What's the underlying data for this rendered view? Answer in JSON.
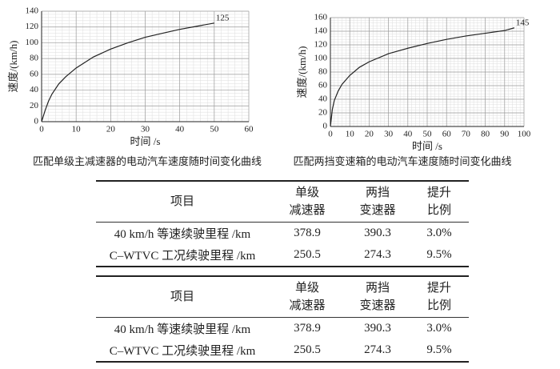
{
  "chart_data": [
    {
      "type": "line",
      "x_label": "时间 /s",
      "y_label": "速度/(km/h)",
      "caption": "匹配单级主减速器的电动汽车速度随时间变化曲线",
      "xlim": [
        0,
        60
      ],
      "xticks": [
        0,
        10,
        20,
        30,
        40,
        50,
        60
      ],
      "ylim": [
        0,
        140
      ],
      "yticks": [
        0,
        20,
        40,
        60,
        80,
        100,
        120,
        140
      ],
      "grid": true,
      "series": [
        {
          "color": "#222222",
          "x": [
            0,
            1,
            2,
            3,
            5,
            7,
            10,
            15,
            20,
            25,
            30,
            35,
            40,
            45,
            50
          ],
          "values": [
            0,
            14,
            26,
            35,
            48,
            57,
            68,
            82,
            92,
            100,
            107,
            112,
            117,
            121,
            125
          ],
          "value_labels": [
            null,
            null,
            null,
            null,
            null,
            null,
            null,
            null,
            null,
            null,
            null,
            null,
            null,
            null,
            "125"
          ]
        }
      ]
    },
    {
      "type": "line",
      "x_label": "时间 /s",
      "y_label": "速度/(km/h)",
      "caption": "匹配两挡变速箱的电动汽车速度随时间变化曲线",
      "xlim": [
        0,
        100
      ],
      "xticks": [
        0,
        10,
        20,
        30,
        40,
        50,
        60,
        70,
        80,
        90,
        100
      ],
      "ylim": [
        0,
        160
      ],
      "yticks": [
        0,
        20,
        40,
        60,
        80,
        100,
        120,
        140,
        160
      ],
      "grid": true,
      "series": [
        {
          "color": "#222222",
          "x": [
            0,
            1,
            2,
            4,
            6,
            10,
            15,
            20,
            30,
            40,
            50,
            60,
            70,
            80,
            90,
            95
          ],
          "values": [
            0,
            25,
            38,
            52,
            62,
            75,
            87,
            95,
            107,
            115,
            122,
            128,
            133,
            137,
            141,
            145
          ],
          "value_labels": [
            null,
            null,
            null,
            null,
            null,
            null,
            null,
            null,
            null,
            null,
            null,
            null,
            null,
            null,
            null,
            "145"
          ]
        }
      ]
    }
  ],
  "tables": [
    {
      "header": [
        [
          "项目"
        ],
        [
          "单级",
          "减速器"
        ],
        [
          "两挡",
          "变速器"
        ],
        [
          "提升",
          "比例"
        ]
      ],
      "rows": [
        [
          "40 km/h 等速续驶里程 /km",
          "378.9",
          "390.3",
          "3.0%"
        ],
        [
          "C–WTVC 工况续驶里程 /km",
          "250.5",
          "274.3",
          "9.5%"
        ]
      ]
    },
    {
      "header": [
        [
          "项目"
        ],
        [
          "单级",
          "减速器"
        ],
        [
          "两挡",
          "变速器"
        ],
        [
          "提升",
          "比例"
        ]
      ],
      "rows": [
        [
          "40 km/h 等速续驶里程 /km",
          "378.9",
          "390.3",
          "3.0%"
        ],
        [
          "C–WTVC 工况续驶里程 /km",
          "250.5",
          "274.3",
          "9.5%"
        ]
      ]
    }
  ]
}
